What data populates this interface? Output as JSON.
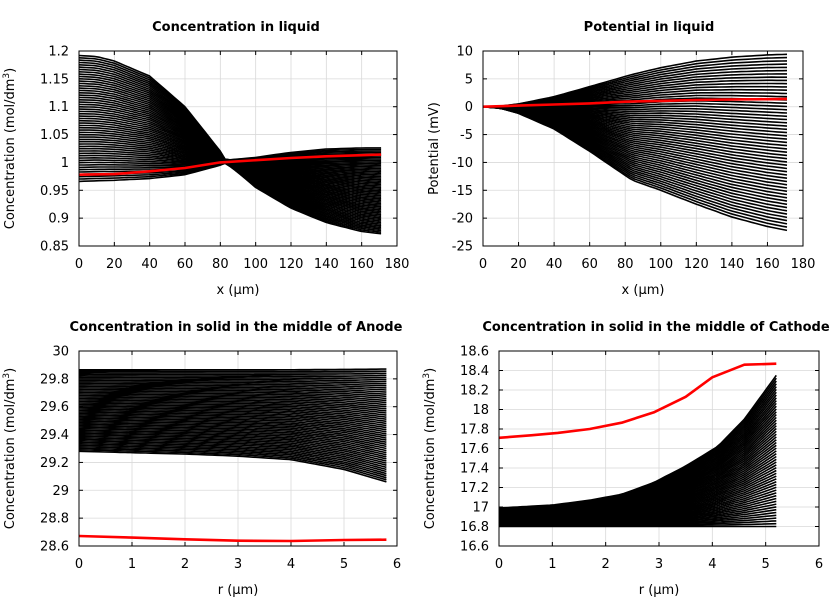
{
  "chart_data": [
    {
      "type": "line",
      "title": "Concentration in liquid",
      "xlabel": "x (µm)",
      "ylabel": "Concentration (mol/dm³)",
      "ylabel_parts": [
        "Concentration (mol/dm",
        "3",
        ")"
      ],
      "xlim": [
        0,
        180
      ],
      "ylim": [
        0.85,
        1.2
      ],
      "xticks": [
        "0",
        "20",
        "40",
        "60",
        "80",
        "100",
        "120",
        "140",
        "160",
        "180"
      ],
      "yticks": [
        "0.85",
        "0.9",
        "0.95",
        "1",
        "1.05",
        "1.1",
        "1.15",
        "1.2"
      ],
      "grid": true,
      "envelope": {
        "color": "#000000",
        "count": 55,
        "lower": [
          [
            0,
            0.966
          ],
          [
            20,
            0.968
          ],
          [
            40,
            0.971
          ],
          [
            60,
            0.978
          ],
          [
            80,
            0.995
          ],
          [
            83,
            0.999
          ],
          [
            90,
            0.982
          ],
          [
            100,
            0.955
          ],
          [
            120,
            0.918
          ],
          [
            140,
            0.892
          ],
          [
            160,
            0.876
          ],
          [
            171,
            0.872
          ]
        ],
        "upper": [
          [
            0,
            1.192
          ],
          [
            10,
            1.19
          ],
          [
            20,
            1.182
          ],
          [
            40,
            1.155
          ],
          [
            60,
            1.1
          ],
          [
            80,
            1.02
          ],
          [
            83,
            1.004
          ],
          [
            100,
            1.009
          ],
          [
            120,
            1.018
          ],
          [
            140,
            1.024
          ],
          [
            160,
            1.026
          ],
          [
            171,
            1.026
          ]
        ]
      },
      "series": [
        {
          "color": "#ff0000",
          "x": [
            0,
            20,
            40,
            60,
            80,
            100,
            120,
            140,
            160,
            171
          ],
          "y": [
            0.978,
            0.979,
            0.984,
            0.99,
            1.0,
            1.004,
            1.008,
            1.011,
            1.013,
            1.014
          ]
        }
      ]
    },
    {
      "type": "line",
      "title": "Potential in liquid",
      "xlabel": "x (µm)",
      "ylabel": "Potential (mV)",
      "xlim": [
        0,
        180
      ],
      "ylim": [
        -25,
        10
      ],
      "xticks": [
        "0",
        "20",
        "40",
        "60",
        "80",
        "100",
        "120",
        "140",
        "160",
        "180"
      ],
      "yticks": [
        "-25",
        "-20",
        "-15",
        "-10",
        "-5",
        "0",
        "5",
        "10"
      ],
      "grid": true,
      "envelope": {
        "color": "#000000",
        "count": 55,
        "lower": [
          [
            0,
            0
          ],
          [
            10,
            -0.3
          ],
          [
            20,
            -1.2
          ],
          [
            40,
            -4
          ],
          [
            60,
            -8
          ],
          [
            84,
            -13.2
          ],
          [
            100,
            -15
          ],
          [
            120,
            -17.5
          ],
          [
            140,
            -19.8
          ],
          [
            160,
            -21.5
          ],
          [
            171,
            -22.2
          ]
        ],
        "upper": [
          [
            0,
            0
          ],
          [
            10,
            0.1
          ],
          [
            20,
            0.5
          ],
          [
            40,
            1.8
          ],
          [
            60,
            3.6
          ],
          [
            84,
            5.8
          ],
          [
            100,
            7
          ],
          [
            120,
            8.2
          ],
          [
            140,
            8.9
          ],
          [
            160,
            9.3
          ],
          [
            171,
            9.4
          ]
        ]
      },
      "series": [
        {
          "color": "#ff0000",
          "x": [
            0,
            20,
            40,
            60,
            80,
            100,
            120,
            140,
            160,
            171
          ],
          "y": [
            0,
            0.2,
            0.4,
            0.6,
            0.9,
            1.05,
            1.2,
            1.3,
            1.35,
            1.4
          ]
        }
      ]
    },
    {
      "type": "line",
      "title": "Concentration in solid in the middle of Anode",
      "xlabel": "r (µm)",
      "ylabel": "Concentration (mol/dm³)",
      "ylabel_parts": [
        "Concentration (mol/dm",
        "3",
        ")"
      ],
      "xlim": [
        0,
        6
      ],
      "ylim": [
        28.6,
        30
      ],
      "xticks": [
        "0",
        "1",
        "2",
        "3",
        "4",
        "5",
        "6"
      ],
      "yticks": [
        "28.6",
        "28.8",
        "29",
        "29.2",
        "29.4",
        "29.6",
        "29.8",
        "30"
      ],
      "grid": true,
      "envelope": {
        "color": "#000000",
        "count": 55,
        "lower": [
          [
            0,
            29.28
          ],
          [
            1,
            29.27
          ],
          [
            2,
            29.26
          ],
          [
            3,
            29.245
          ],
          [
            4,
            29.22
          ],
          [
            5,
            29.15
          ],
          [
            5.8,
            29.06
          ]
        ],
        "upper": [
          [
            0,
            29.865
          ],
          [
            2,
            29.865
          ],
          [
            4,
            29.865
          ],
          [
            5.8,
            29.87
          ]
        ]
      },
      "series": [
        {
          "color": "#ff0000",
          "x": [
            0,
            1,
            2,
            3,
            4,
            5,
            5.8
          ],
          "y": [
            28.672,
            28.66,
            28.648,
            28.638,
            28.636,
            28.643,
            28.645
          ]
        }
      ]
    },
    {
      "type": "line",
      "title": "Concentration in solid in the middle of Cathode",
      "xlabel": "r (µm)",
      "ylabel": "Concentration (mol/dm³)",
      "ylabel_parts": [
        "Concentration (mol/dm",
        "3",
        ")"
      ],
      "xlim": [
        0,
        6
      ],
      "ylim": [
        16.6,
        18.6
      ],
      "xticks": [
        "0",
        "1",
        "2",
        "3",
        "4",
        "5",
        "6"
      ],
      "yticks": [
        "16.6",
        "16.8",
        "17",
        "17.2",
        "17.4",
        "17.6",
        "17.8",
        "18",
        "18.2",
        "18.4",
        "18.6"
      ],
      "grid": true,
      "envelope": {
        "color": "#000000",
        "count": 55,
        "lower": [
          [
            0,
            16.8
          ],
          [
            5.2,
            16.8
          ]
        ],
        "upper": [
          [
            0,
            16.99
          ],
          [
            1,
            17.02
          ],
          [
            1.7,
            17.07
          ],
          [
            2.3,
            17.13
          ],
          [
            2.9,
            17.25
          ],
          [
            3.5,
            17.42
          ],
          [
            4.1,
            17.62
          ],
          [
            4.6,
            17.9
          ],
          [
            5.2,
            18.35
          ]
        ]
      },
      "series": [
        {
          "color": "#ff0000",
          "x": [
            0,
            0.6,
            1.1,
            1.7,
            2.3,
            2.9,
            3.5,
            4.0,
            4.6,
            5.2
          ],
          "y": [
            17.71,
            17.735,
            17.76,
            17.8,
            17.865,
            17.97,
            18.13,
            18.33,
            18.46,
            18.47
          ]
        }
      ]
    }
  ]
}
